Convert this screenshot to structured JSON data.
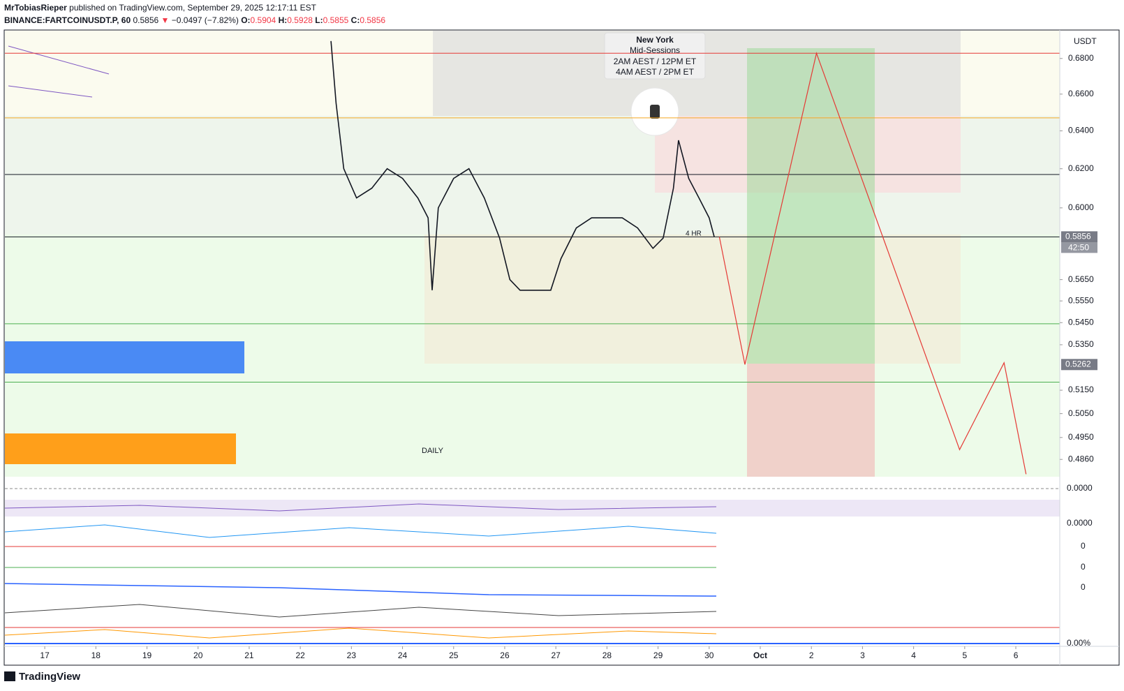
{
  "chart_data": {
    "type": "line",
    "header": {
      "author": "MrTobiasRieper",
      "published": "published on TradingView.com, September 29, 2025 12:17:11 EST",
      "symbol": "BINANCE:FARTCOINUSDT.P, 60",
      "last": "0.5856",
      "arrow": "▼",
      "change": "−0.0497 (−7.82%)",
      "o_label": "O:",
      "o": "0.5904",
      "h_label": "H:",
      "h": "0.5928",
      "l_label": "L:",
      "l": "0.5855",
      "c_label": "C:",
      "c": "0.5856"
    },
    "currency": "USDT",
    "session_box": [
      "New York",
      "Mid-Sessions",
      "2AM AEST / 12PM ET",
      "4AM AEST / 2PM ET"
    ],
    "annotations": [
      "4 HR",
      "DAILY"
    ],
    "countdown": "42:50",
    "brand": "TradingView",
    "indicator_axis_labels": [
      "0.0000",
      "0.0000",
      "0",
      "0",
      "0",
      "0.00%"
    ],
    "log_scale": true,
    "xlim": [
      -0.78,
      19.86
    ],
    "ylim": [
      0.479,
      0.696
    ],
    "xticks": [
      {
        "value": 0,
        "label": "17"
      },
      {
        "value": 1,
        "label": "18"
      },
      {
        "value": 2,
        "label": "19"
      },
      {
        "value": 3,
        "label": "20"
      },
      {
        "value": 4,
        "label": "21"
      },
      {
        "value": 5,
        "label": "22"
      },
      {
        "value": 6,
        "label": "23"
      },
      {
        "value": 7,
        "label": "24"
      },
      {
        "value": 8,
        "label": "25"
      },
      {
        "value": 9,
        "label": "26"
      },
      {
        "value": 10,
        "label": "27"
      },
      {
        "value": 11,
        "label": "28"
      },
      {
        "value": 12,
        "label": "29"
      },
      {
        "value": 13,
        "label": "30"
      },
      {
        "value": 14,
        "label": "Oct"
      },
      {
        "value": 15,
        "label": "2"
      },
      {
        "value": 16,
        "label": "3"
      },
      {
        "value": 17,
        "label": "4"
      },
      {
        "value": 18,
        "label": "5"
      },
      {
        "value": 19,
        "label": "6"
      }
    ],
    "yticks": [
      {
        "value": 0.68,
        "label": "0.6800"
      },
      {
        "value": 0.66,
        "label": "0.6600"
      },
      {
        "value": 0.64,
        "label": "0.6400"
      },
      {
        "value": 0.62,
        "label": "0.6200"
      },
      {
        "value": 0.6,
        "label": "0.6000"
      },
      {
        "value": 0.565,
        "label": "0.5650"
      },
      {
        "value": 0.555,
        "label": "0.5550"
      },
      {
        "value": 0.545,
        "label": "0.5450"
      },
      {
        "value": 0.535,
        "label": "0.5350"
      },
      {
        "value": 0.515,
        "label": "0.5150"
      },
      {
        "value": 0.505,
        "label": "0.5050"
      },
      {
        "value": 0.495,
        "label": "0.4950"
      },
      {
        "value": 0.486,
        "label": "0.4860"
      }
    ],
    "price_tags": [
      {
        "value": 0.5856,
        "label": "0.5856"
      },
      {
        "value": 0.5262,
        "label": "0.5262"
      }
    ],
    "levels": [
      {
        "value": 0.683,
        "color": "#e53935"
      },
      {
        "value": 0.647,
        "color": "#f5a623"
      },
      {
        "value": 0.617,
        "color": "#131722"
      },
      {
        "value": 0.5856,
        "color": "#131722"
      },
      {
        "value": 0.5445,
        "color": "#4caf50"
      },
      {
        "value": 0.5185,
        "color": "#4caf50"
      }
    ],
    "series": [
      {
        "color": "#131722",
        "x": [
          5.6,
          5.7,
          5.85,
          6.1,
          6.4,
          6.7,
          7.0,
          7.3,
          7.5,
          7.58,
          7.7,
          8.0,
          8.3,
          8.6,
          8.9,
          9.1,
          9.3,
          9.6,
          9.9,
          10.1,
          10.4,
          10.7,
          11.0,
          11.3,
          11.6,
          11.9,
          12.1,
          12.3,
          12.4,
          12.6,
          12.8,
          13.0,
          13.1
        ],
        "values": [
          0.69,
          0.655,
          0.62,
          0.605,
          0.61,
          0.62,
          0.615,
          0.605,
          0.595,
          0.56,
          0.6,
          0.615,
          0.62,
          0.605,
          0.585,
          0.565,
          0.56,
          0.56,
          0.56,
          0.575,
          0.59,
          0.595,
          0.595,
          0.595,
          0.59,
          0.58,
          0.585,
          0.61,
          0.635,
          0.615,
          0.605,
          0.595,
          0.5856
        ]
      },
      {
        "color": "#e53935",
        "x": [
          13.2,
          13.7,
          15.1,
          17.9,
          18.77,
          19.2
        ],
        "values": [
          0.5856,
          0.5262,
          0.683,
          0.49,
          0.527,
          0.48
        ]
      }
    ]
  }
}
